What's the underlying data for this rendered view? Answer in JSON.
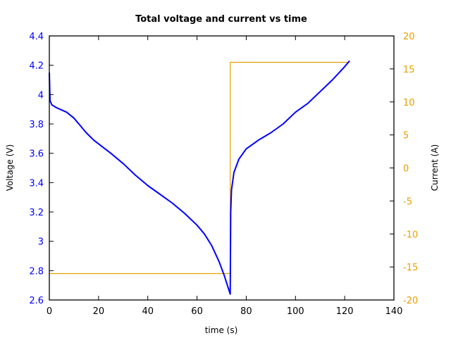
{
  "chart_data": {
    "type": "line",
    "title": "Total voltage and current vs time",
    "xlabel": "time (s)",
    "ylabel": "Voltage (V)",
    "y2label": "Current (A)",
    "xlim": [
      0,
      140
    ],
    "ylim": [
      2.6,
      4.4
    ],
    "y2lim": [
      -20,
      20
    ],
    "xticks": [
      0,
      20,
      40,
      60,
      80,
      100,
      120,
      140
    ],
    "yticks": [
      2.6,
      2.8,
      3,
      3.2,
      3.4,
      3.6,
      3.8,
      4,
      4.2,
      4.4
    ],
    "y2ticks": [
      -20,
      -15,
      -10,
      -5,
      0,
      5,
      10,
      15,
      20
    ],
    "grid": false,
    "legend": null,
    "colors": {
      "voltage": "#0000ff",
      "current": "#e69f00",
      "axis": "#000000"
    },
    "series": [
      {
        "name": "Voltage",
        "axis": "left",
        "color": "#0000ff",
        "x": [
          0,
          0.3,
          1,
          3,
          7,
          10,
          12,
          15,
          18,
          25,
          30,
          35,
          40,
          45,
          50,
          55,
          60,
          63,
          66,
          69,
          71,
          73.5,
          73.7,
          74,
          75,
          77,
          80,
          85,
          90,
          95,
          100,
          105,
          110,
          115,
          120,
          122
        ],
        "values": [
          4.15,
          3.96,
          3.93,
          3.91,
          3.88,
          3.84,
          3.8,
          3.74,
          3.69,
          3.6,
          3.53,
          3.45,
          3.38,
          3.32,
          3.26,
          3.19,
          3.11,
          3.05,
          2.97,
          2.86,
          2.77,
          2.64,
          3.2,
          3.35,
          3.47,
          3.56,
          3.63,
          3.69,
          3.74,
          3.8,
          3.88,
          3.94,
          4.02,
          4.1,
          4.19,
          4.23
        ]
      },
      {
        "name": "Current",
        "axis": "right",
        "color": "#e69f00",
        "x": [
          0,
          73.5,
          73.5,
          122
        ],
        "values": [
          -16,
          -16,
          16,
          16
        ]
      }
    ]
  }
}
